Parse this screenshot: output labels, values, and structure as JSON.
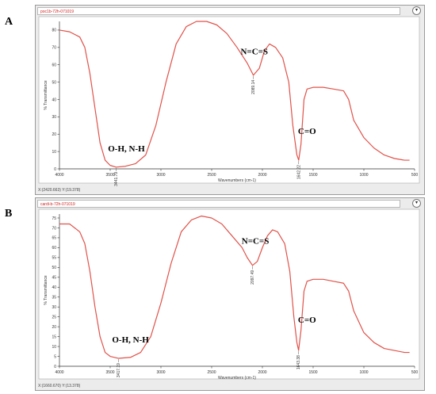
{
  "colors": {
    "trace": "#e0524a",
    "axis": "#333333",
    "window_bg": "#ececec"
  },
  "panels": [
    {
      "letter": "A",
      "window_title": "poc1b-72h-071019",
      "status": "X:(2420.663) Y:(19.378)",
      "button_icon": "chevron-down-icon",
      "button_glyph": "▾",
      "xlabel": "Wavenumbers (cm-1)",
      "ylabel": "% Transmittance",
      "peak_labels": [
        {
          "x": 3441.79,
          "y": 1,
          "label": "3441.79"
        },
        {
          "x": 2089.14,
          "y": 54,
          "label": "2089.14"
        },
        {
          "x": 1642.22,
          "y": 5,
          "label": "1642.22"
        }
      ],
      "annotations": [
        {
          "text": "O-H, N-H",
          "x": 3340,
          "y": 10
        },
        {
          "text": "N=C=S",
          "x": 2080,
          "y": 66
        },
        {
          "text": "C=O",
          "x": 1560,
          "y": 20
        }
      ]
    },
    {
      "letter": "B",
      "window_title": "cardi-b-72h-071019",
      "status": "X:(1660.670) Y:(13.378)",
      "button_icon": "chevron-down-icon",
      "button_glyph": "▾",
      "xlabel": "Wavenumbers (cm-1)",
      "ylabel": "% Transmittance",
      "peak_labels": [
        {
          "x": 3417.19,
          "y": 4,
          "label": "3417.19"
        },
        {
          "x": 2097.49,
          "y": 51,
          "label": "2097.49"
        },
        {
          "x": 1643.38,
          "y": 8,
          "label": "1643.38"
        }
      ],
      "annotations": [
        {
          "text": "O-H, N-H",
          "x": 3300,
          "y": 12
        },
        {
          "text": "N=C=S",
          "x": 2070,
          "y": 62
        },
        {
          "text": "C=O",
          "x": 1560,
          "y": 22
        }
      ]
    }
  ],
  "chart_data": [
    {
      "type": "line",
      "xlabel": "Wavenumbers (cm-1)",
      "ylabel": "% Transmittance",
      "xlim": [
        4000,
        500
      ],
      "x_reversed": true,
      "ylim": [
        0,
        85
      ],
      "xticks": [
        4000,
        3500,
        3000,
        2500,
        2000,
        1500,
        1000,
        500
      ],
      "yticks": [
        0,
        10,
        20,
        30,
        40,
        50,
        60,
        70,
        80
      ],
      "series": [
        {
          "points": [
            [
              4000,
              80
            ],
            [
              3900,
              79
            ],
            [
              3800,
              76
            ],
            [
              3750,
              70
            ],
            [
              3700,
              55
            ],
            [
              3650,
              35
            ],
            [
              3600,
              15
            ],
            [
              3550,
              5
            ],
            [
              3500,
              2
            ],
            [
              3441.79,
              1
            ],
            [
              3350,
              1.5
            ],
            [
              3250,
              3
            ],
            [
              3150,
              8
            ],
            [
              3050,
              25
            ],
            [
              2950,
              50
            ],
            [
              2850,
              72
            ],
            [
              2750,
              82
            ],
            [
              2650,
              85
            ],
            [
              2550,
              85
            ],
            [
              2450,
              83
            ],
            [
              2350,
              78
            ],
            [
              2250,
              70
            ],
            [
              2150,
              61
            ],
            [
              2089.14,
              54
            ],
            [
              2030,
              58
            ],
            [
              1980,
              68
            ],
            [
              1930,
              72
            ],
            [
              1870,
              70
            ],
            [
              1800,
              64
            ],
            [
              1740,
              50
            ],
            [
              1700,
              25
            ],
            [
              1660,
              8
            ],
            [
              1642.22,
              5
            ],
            [
              1620,
              14
            ],
            [
              1590,
              40
            ],
            [
              1560,
              46
            ],
            [
              1500,
              47
            ],
            [
              1400,
              47
            ],
            [
              1300,
              46
            ],
            [
              1200,
              45
            ],
            [
              1150,
              40
            ],
            [
              1100,
              28
            ],
            [
              1000,
              18
            ],
            [
              900,
              12
            ],
            [
              800,
              8
            ],
            [
              700,
              6
            ],
            [
              600,
              5
            ],
            [
              550,
              5
            ]
          ]
        }
      ]
    },
    {
      "type": "line",
      "xlabel": "Wavenumbers (cm-1)",
      "ylabel": "% Transmittance",
      "xlim": [
        4000,
        500
      ],
      "x_reversed": true,
      "ylim": [
        0,
        77
      ],
      "xticks": [
        4000,
        3500,
        3000,
        2500,
        2000,
        1500,
        1000,
        500
      ],
      "yticks": [
        0,
        5,
        10,
        15,
        20,
        25,
        30,
        35,
        40,
        45,
        50,
        55,
        60,
        65,
        70,
        75
      ],
      "series": [
        {
          "points": [
            [
              4000,
              72
            ],
            [
              3900,
              72
            ],
            [
              3800,
              68
            ],
            [
              3750,
              62
            ],
            [
              3700,
              48
            ],
            [
              3650,
              30
            ],
            [
              3600,
              15
            ],
            [
              3550,
              7
            ],
            [
              3500,
              5
            ],
            [
              3417.19,
              4
            ],
            [
              3300,
              4.5
            ],
            [
              3200,
              7
            ],
            [
              3100,
              15
            ],
            [
              3000,
              32
            ],
            [
              2900,
              52
            ],
            [
              2800,
              68
            ],
            [
              2700,
              74
            ],
            [
              2600,
              76
            ],
            [
              2500,
              75
            ],
            [
              2400,
              72
            ],
            [
              2300,
              66
            ],
            [
              2200,
              60
            ],
            [
              2150,
              55
            ],
            [
              2097.49,
              51
            ],
            [
              2050,
              53
            ],
            [
              2000,
              60
            ],
            [
              1950,
              66
            ],
            [
              1900,
              69
            ],
            [
              1850,
              68
            ],
            [
              1780,
              62
            ],
            [
              1730,
              48
            ],
            [
              1690,
              25
            ],
            [
              1660,
              12
            ],
            [
              1643.38,
              8
            ],
            [
              1620,
              18
            ],
            [
              1590,
              38
            ],
            [
              1560,
              43
            ],
            [
              1500,
              44
            ],
            [
              1400,
              44
            ],
            [
              1300,
              43
            ],
            [
              1200,
              42
            ],
            [
              1150,
              38
            ],
            [
              1100,
              28
            ],
            [
              1000,
              17
            ],
            [
              900,
              12
            ],
            [
              800,
              9
            ],
            [
              700,
              8
            ],
            [
              600,
              7
            ],
            [
              550,
              7
            ]
          ]
        }
      ]
    }
  ]
}
